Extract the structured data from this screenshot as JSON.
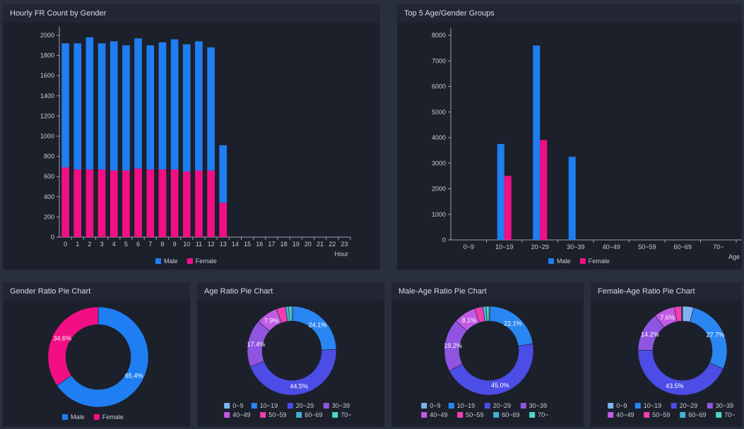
{
  "panels": {
    "hourly": "Hourly FR Count by Gender",
    "top5": "Top 5 Age/Gender Groups",
    "gender_pie": "Gender Ratio Pie Chart",
    "age_pie": "Age Ratio Pie Chart",
    "male_age_pie": "Male-Age Ratio Pie Chart",
    "female_age_pie": "Female-Age Ratio Pie Chart"
  },
  "colors": {
    "male": "#1f7ef2",
    "female": "#f20f86",
    "ages": [
      "#7fb2f0",
      "#2a86f2",
      "#4c4de6",
      "#9055e0",
      "#c15be6",
      "#f23eb0",
      "#3fb3d6",
      "#4ed6c6"
    ]
  },
  "chart_data": [
    {
      "type": "bar",
      "stacked": true,
      "categories": [
        "0",
        "1",
        "2",
        "3",
        "4",
        "5",
        "6",
        "7",
        "8",
        "9",
        "10",
        "11",
        "12",
        "13",
        "14",
        "15",
        "16",
        "17",
        "18",
        "19",
        "20",
        "21",
        "22",
        "23"
      ],
      "series": [
        {
          "name": "Male",
          "values": [
            1230,
            1250,
            1310,
            1250,
            1280,
            1240,
            1290,
            1230,
            1260,
            1290,
            1260,
            1280,
            1220,
            570,
            0,
            0,
            0,
            0,
            0,
            0,
            0,
            0,
            0,
            0
          ]
        },
        {
          "name": "Female",
          "values": [
            690,
            670,
            670,
            670,
            660,
            660,
            680,
            670,
            670,
            670,
            650,
            660,
            660,
            340,
            0,
            0,
            0,
            0,
            0,
            0,
            0,
            0,
            0,
            0
          ]
        }
      ],
      "xlabel": "Hour",
      "ylim": [
        0,
        2000
      ],
      "yticks": [
        0,
        200,
        400,
        600,
        800,
        1000,
        1200,
        1400,
        1600,
        1800,
        2000
      ],
      "legend": "bottom-center"
    },
    {
      "type": "bar",
      "categories": [
        "0~9",
        "10~19",
        "20~29",
        "30~39",
        "40~49",
        "50~59",
        "60~69",
        "70~"
      ],
      "series": [
        {
          "name": "Male",
          "values": [
            0,
            3750,
            7600,
            3250,
            0,
            0,
            0,
            0
          ]
        },
        {
          "name": "Female",
          "values": [
            0,
            2500,
            3900,
            0,
            0,
            0,
            0,
            0
          ]
        }
      ],
      "xlabel": "Age",
      "ylim": [
        0,
        8000
      ],
      "yticks": [
        0,
        1000,
        2000,
        3000,
        4000,
        5000,
        6000,
        7000,
        8000
      ],
      "legend": "bottom-center"
    },
    {
      "type": "pie",
      "categories": [
        "Male",
        "Female"
      ],
      "values": [
        65.4,
        34.6
      ],
      "labels": [
        "65.4%",
        "34.6%"
      ],
      "legend": "bottom-center"
    },
    {
      "type": "pie",
      "categories": [
        "0~9",
        "10~19",
        "20~29",
        "30~39",
        "40~49",
        "50~59",
        "60~69",
        "70~"
      ],
      "values": [
        0.5,
        24.1,
        44.5,
        17.4,
        7.9,
        3.3,
        1.2,
        1.1
      ],
      "labels": [
        "",
        "24.1%",
        "44.5%",
        "17.4%",
        "7.9%",
        "",
        "",
        ""
      ],
      "legend": "bottom-center"
    },
    {
      "type": "pie",
      "categories": [
        "0~9",
        "10~19",
        "20~29",
        "30~39",
        "40~49",
        "50~59",
        "60~69",
        "70~"
      ],
      "values": [
        0.4,
        22.1,
        45.0,
        19.2,
        8.1,
        3.0,
        1.2,
        1.0
      ],
      "labels": [
        "",
        "22.1%",
        "45.0%",
        "19.2%",
        "8.1%",
        "",
        "",
        ""
      ],
      "legend": "bottom-center"
    },
    {
      "type": "pie",
      "categories": [
        "0~9",
        "10~19",
        "20~29",
        "30~39",
        "40~49",
        "50~59",
        "60~69",
        "70~"
      ],
      "values": [
        4.0,
        27.7,
        43.5,
        14.2,
        7.6,
        2.6,
        0.2,
        0.2
      ],
      "labels": [
        "",
        "27.7%",
        "43.5%",
        "14.2%",
        "7.6%",
        "",
        "",
        ""
      ],
      "legend": "bottom-center"
    }
  ]
}
